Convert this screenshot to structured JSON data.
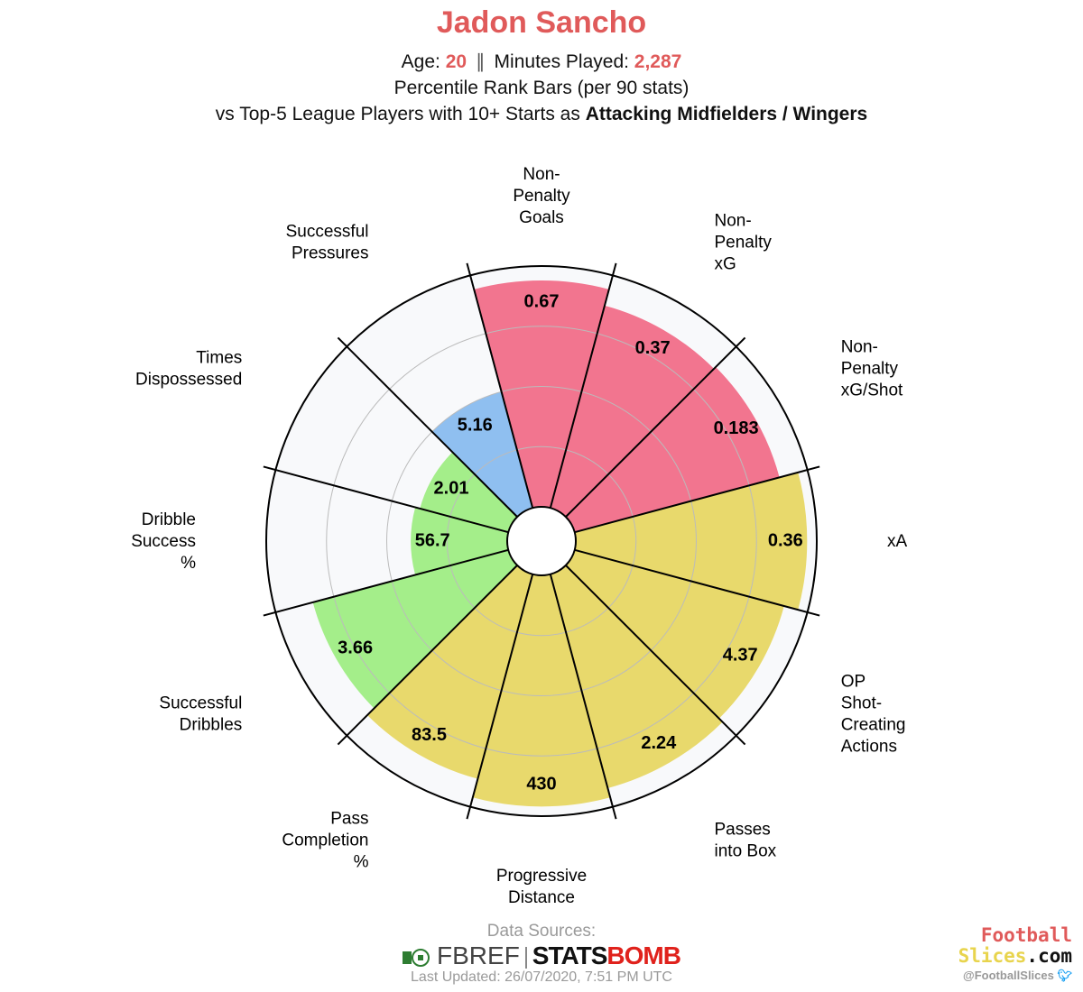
{
  "header": {
    "player": "Jadon Sancho",
    "age_label": "Age: ",
    "age": "20",
    "separator": "∥",
    "minutes_label": "Minutes Played: ",
    "minutes": "2,287",
    "subtitle": "Percentile Rank Bars (per 90 stats)",
    "comparison_prefix": "vs Top-5 League Players with 10+ Starts as ",
    "comparison_group": "Attacking Midfielders / Wingers"
  },
  "colors": {
    "attacking": "#f2758f",
    "possession": "#e8d96c",
    "dribbling": "#a4ee8a",
    "defending": "#8fbff0",
    "accent": "#e05a5a"
  },
  "chart_data": {
    "type": "polar-bar",
    "description": "Percentile rank per metric (0-100); value label shows raw per-90 stat",
    "metrics": [
      {
        "label": "Non-\nPenalty\nGoals",
        "value": "0.67",
        "percentile": 94,
        "group": "attacking"
      },
      {
        "label": "Non-\nPenalty\nxG",
        "value": "0.37",
        "percentile": 87,
        "group": "attacking"
      },
      {
        "label": "Non-\nPenalty\nxG/Shot",
        "value": "0.183",
        "percentile": 88,
        "group": "attacking"
      },
      {
        "label": "xA",
        "value": "0.36",
        "percentile": 96,
        "group": "possession"
      },
      {
        "label": "OP\nShot-\nCreating\nActions",
        "value": "4.37",
        "percentile": 90,
        "group": "possession"
      },
      {
        "label": "Passes\ninto Box",
        "value": "2.24",
        "percentile": 92,
        "group": "possession"
      },
      {
        "label": "Progressive\nDistance",
        "value": "430",
        "percentile": 96,
        "group": "possession"
      },
      {
        "label": "Pass\nCompletion\n%",
        "value": "83.5",
        "percentile": 88,
        "group": "possession"
      },
      {
        "label": "Successful\nDribbles",
        "value": "3.66",
        "percentile": 84,
        "group": "dribbling"
      },
      {
        "label": "Dribble\nSuccess\n%",
        "value": "56.7",
        "percentile": 40,
        "group": "dribbling"
      },
      {
        "label": "Times\nDispossessed",
        "value": "2.01",
        "percentile": 38,
        "group": "dribbling"
      },
      {
        "label": "Successful\nPressures",
        "value": "5.16",
        "percentile": 50,
        "group": "defending"
      }
    ],
    "grid_rings": [
      25,
      50,
      75,
      100
    ]
  },
  "footer": {
    "sources_label": "Data Sources:",
    "fbref": "FBREF",
    "statsbomb_a": "STATS",
    "statsbomb_b": "BOMB",
    "updated": "Last Updated: 26/07/2020, 7:51 PM UTC",
    "brand_line1": "Football",
    "brand_line2a": "Slices",
    "brand_line2b": ".com",
    "brand_handle": "@FootballSlices"
  }
}
